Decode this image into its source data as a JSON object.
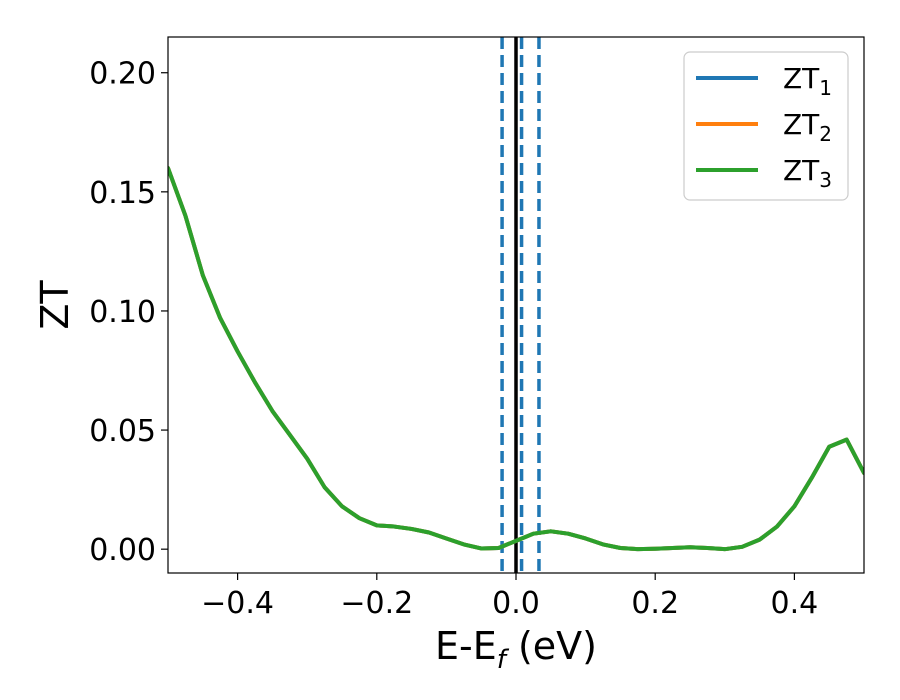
{
  "chart_data": {
    "type": "line",
    "xlabel": {
      "main": "E-E",
      "sub": "f",
      "suffix": " (eV)"
    },
    "ylabel": "ZT",
    "xlim": [
      -0.5,
      0.5
    ],
    "ylim": [
      -0.01,
      0.215
    ],
    "xticks": [
      -0.4,
      -0.2,
      0.0,
      0.2,
      0.4
    ],
    "xtick_labels": [
      "−0.4",
      "−0.2",
      "0.0",
      "0.2",
      "0.4"
    ],
    "yticks": [
      0.0,
      0.05,
      0.1,
      0.15,
      0.2
    ],
    "ytick_labels": [
      "0.00",
      "0.05",
      "0.10",
      "0.15",
      "0.20"
    ],
    "grid": false,
    "legend_position": "top-right",
    "reference_lines": [
      {
        "x": 0.0,
        "style": "solid",
        "color": "#000000"
      },
      {
        "x": -0.02,
        "style": "dashed",
        "color": "#1f77b4"
      },
      {
        "x": 0.008,
        "style": "dashed",
        "color": "#1f77b4"
      },
      {
        "x": 0.033,
        "style": "dashed",
        "color": "#1f77b4"
      }
    ],
    "series": [
      {
        "name": "ZT",
        "subscript": "1",
        "color": "#1f77b4",
        "x": [
          -0.5,
          -0.475,
          -0.45,
          -0.425,
          -0.4,
          -0.375,
          -0.35,
          -0.325,
          -0.3,
          -0.275,
          -0.25,
          -0.225,
          -0.2,
          -0.175,
          -0.15,
          -0.125,
          -0.1,
          -0.075,
          -0.05,
          -0.025,
          0.0,
          0.025,
          0.05,
          0.075,
          0.1,
          0.125,
          0.15,
          0.175,
          0.2,
          0.225,
          0.25,
          0.275,
          0.3,
          0.325,
          0.35,
          0.375,
          0.4,
          0.425,
          0.45,
          0.475,
          0.5
        ],
        "y": [
          0.16,
          0.14,
          0.115,
          0.097,
          0.083,
          0.07,
          0.058,
          0.048,
          0.038,
          0.026,
          0.018,
          0.013,
          0.01,
          0.0095,
          0.0085,
          0.007,
          0.0045,
          0.002,
          0.0003,
          0.0005,
          0.0035,
          0.0065,
          0.0075,
          0.0065,
          0.0045,
          0.002,
          0.0005,
          0.0,
          0.0002,
          0.0005,
          0.0008,
          0.0005,
          0.0,
          0.001,
          0.004,
          0.0095,
          0.018,
          0.03,
          0.043,
          0.046,
          0.032
        ]
      },
      {
        "name": "ZT",
        "subscript": "2",
        "color": "#ff7f0e",
        "x": [
          -0.5,
          -0.475,
          -0.45,
          -0.425,
          -0.4,
          -0.375,
          -0.35,
          -0.325,
          -0.3,
          -0.275,
          -0.25,
          -0.225,
          -0.2,
          -0.175,
          -0.15,
          -0.125,
          -0.1,
          -0.075,
          -0.05,
          -0.025,
          0.0,
          0.025,
          0.05,
          0.075,
          0.1,
          0.125,
          0.15,
          0.175,
          0.2,
          0.225,
          0.25,
          0.275,
          0.3,
          0.325,
          0.35,
          0.375,
          0.4,
          0.425,
          0.45,
          0.475,
          0.5
        ],
        "y": [
          0.16,
          0.14,
          0.115,
          0.097,
          0.083,
          0.07,
          0.058,
          0.048,
          0.038,
          0.026,
          0.018,
          0.013,
          0.01,
          0.0095,
          0.0085,
          0.007,
          0.0045,
          0.002,
          0.0003,
          0.0005,
          0.0035,
          0.0065,
          0.0075,
          0.0065,
          0.0045,
          0.002,
          0.0005,
          0.0,
          0.0002,
          0.0005,
          0.0008,
          0.0005,
          0.0,
          0.001,
          0.004,
          0.0095,
          0.018,
          0.03,
          0.043,
          0.046,
          0.032
        ]
      },
      {
        "name": "ZT",
        "subscript": "3",
        "color": "#2ca02c",
        "x": [
          -0.5,
          -0.475,
          -0.45,
          -0.425,
          -0.4,
          -0.375,
          -0.35,
          -0.325,
          -0.3,
          -0.275,
          -0.25,
          -0.225,
          -0.2,
          -0.175,
          -0.15,
          -0.125,
          -0.1,
          -0.075,
          -0.05,
          -0.025,
          0.0,
          0.025,
          0.05,
          0.075,
          0.1,
          0.125,
          0.15,
          0.175,
          0.2,
          0.225,
          0.25,
          0.275,
          0.3,
          0.325,
          0.35,
          0.375,
          0.4,
          0.425,
          0.45,
          0.475,
          0.5
        ],
        "y": [
          0.16,
          0.14,
          0.115,
          0.097,
          0.083,
          0.07,
          0.058,
          0.048,
          0.038,
          0.026,
          0.018,
          0.013,
          0.01,
          0.0095,
          0.0085,
          0.007,
          0.0045,
          0.002,
          0.0003,
          0.0005,
          0.0035,
          0.0065,
          0.0075,
          0.0065,
          0.0045,
          0.002,
          0.0005,
          0.0,
          0.0002,
          0.0005,
          0.0008,
          0.0005,
          0.0,
          0.001,
          0.004,
          0.0095,
          0.018,
          0.03,
          0.043,
          0.046,
          0.032
        ]
      }
    ]
  }
}
